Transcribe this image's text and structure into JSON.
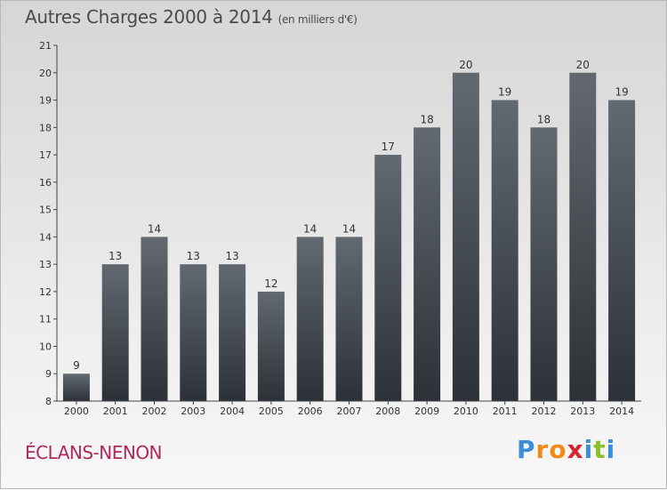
{
  "title": "Autres Charges 2000 à 2014",
  "unit_note": "(en milliers d'€)",
  "commune": "ÉCLANS-NENON",
  "logo": {
    "text": "Proxiti",
    "letters": [
      "P",
      "r",
      "o",
      "x",
      "i",
      "t",
      "i"
    ],
    "colors": [
      "#3a8fd6",
      "#f28a1a",
      "#f28a1a",
      "#d6262f",
      "#3a8fd6",
      "#8cbf26",
      "#3a8fd6"
    ]
  },
  "chart_data": {
    "type": "bar",
    "title": "Autres Charges 2000 à 2014",
    "subtitle": "(en milliers d'€)",
    "categories": [
      "2000",
      "2001",
      "2002",
      "2003",
      "2004",
      "2005",
      "2006",
      "2007",
      "2008",
      "2009",
      "2010",
      "2011",
      "2012",
      "2013",
      "2014"
    ],
    "values": [
      9,
      13,
      14,
      13,
      13,
      12,
      14,
      14,
      17,
      18,
      20,
      19,
      18,
      20,
      19
    ],
    "ylim": [
      8,
      21
    ],
    "yticks": [
      8,
      9,
      10,
      11,
      12,
      13,
      14,
      15,
      16,
      17,
      18,
      19,
      20,
      21
    ],
    "grid": false,
    "bar_color_top": "#636971",
    "bar_color_bottom": "#2c3137"
  }
}
